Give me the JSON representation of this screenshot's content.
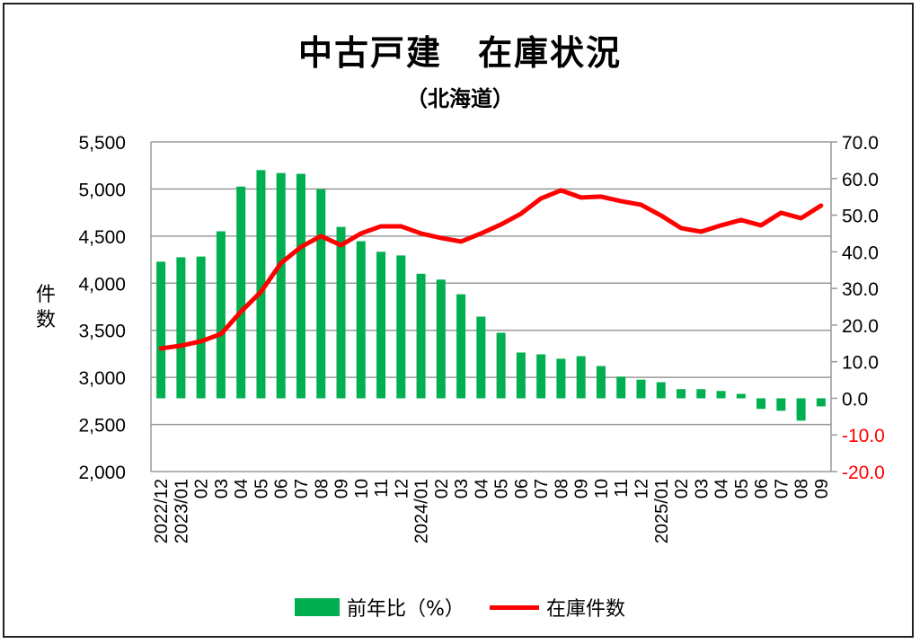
{
  "chart_data": {
    "type": "bar+line",
    "title": "中古戸建　在庫状況",
    "subtitle": "（北海道）",
    "ylabel": "件数",
    "categories": [
      "2022/12",
      "2023/01",
      "02",
      "03",
      "04",
      "05",
      "06",
      "07",
      "08",
      "09",
      "10",
      "11",
      "12",
      "2024/01",
      "02",
      "03",
      "04",
      "05",
      "06",
      "07",
      "08",
      "09",
      "10",
      "11",
      "12",
      "2025/01",
      "02",
      "03",
      "04",
      "05",
      "06",
      "07",
      "08",
      "09"
    ],
    "y_left": {
      "min": 2000,
      "max": 5500,
      "step": 500,
      "ticks": [
        "2,000",
        "2,500",
        "3,000",
        "3,500",
        "4,000",
        "4,500",
        "5,000",
        "5,500"
      ]
    },
    "y_right": {
      "min": -20,
      "max": 70,
      "step": 10,
      "ticks": [
        "-20.0",
        "-10.0",
        "0.0",
        "10.0",
        "20.0",
        "30.0",
        "40.0",
        "50.0",
        "60.0",
        "70.0"
      ],
      "negative_color": "#ff0000"
    },
    "grid": true,
    "legend_position": "bottom",
    "series": [
      {
        "name": "前年比（%）",
        "type": "bar",
        "axis": "right",
        "color": "#00b050",
        "values": [
          37.3,
          38.5,
          38.7,
          45.6,
          57.8,
          62.3,
          61.5,
          61.3,
          57.1,
          46.8,
          42.9,
          40.0,
          39.0,
          34.0,
          32.4,
          28.4,
          22.3,
          17.9,
          12.5,
          12.0,
          10.8,
          11.5,
          8.8,
          5.9,
          5.1,
          4.4,
          2.5,
          2.5,
          2.0,
          1.2,
          -2.9,
          -3.4,
          -6.1,
          -2.2
        ]
      },
      {
        "name": "在庫件数",
        "type": "line",
        "axis": "left",
        "color": "#ff0000",
        "values": [
          3307,
          3336,
          3383,
          3460,
          3698,
          3908,
          4213,
          4385,
          4500,
          4404,
          4528,
          4604,
          4604,
          4528,
          4480,
          4442,
          4528,
          4623,
          4738,
          4900,
          4986,
          4910,
          4919,
          4871,
          4833,
          4719,
          4585,
          4547,
          4614,
          4671,
          4614,
          4748,
          4690,
          4824
        ]
      }
    ]
  }
}
